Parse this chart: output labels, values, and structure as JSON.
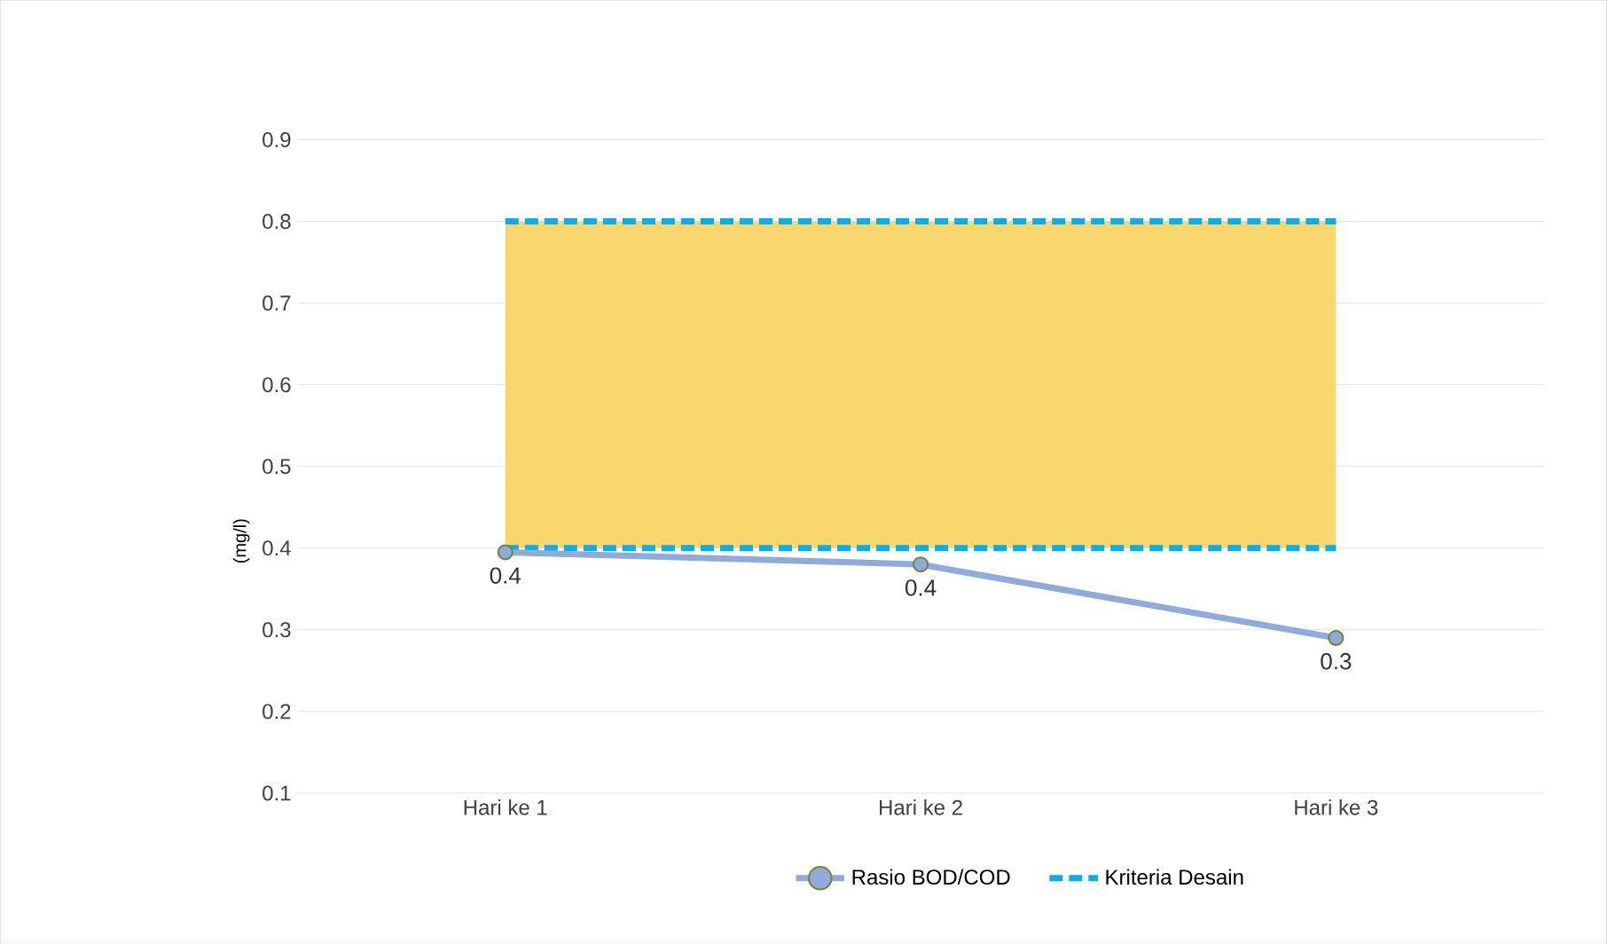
{
  "chart_data": {
    "type": "line",
    "ylabel": "(mg/l)",
    "categories": [
      "Hari ke 1",
      "Hari ke 2",
      "Hari ke 3"
    ],
    "series": [
      {
        "name": "Rasio BOD/COD",
        "color": "#8faadc",
        "values": [
          0.395,
          0.38,
          0.29
        ],
        "value_labels": [
          "0.4",
          "0.4",
          "0.3"
        ],
        "marker": "circle",
        "line_style": "solid"
      },
      {
        "name": "Kriteria Desain",
        "color": "#00b0f0",
        "values": [
          0.8,
          0.8,
          0.8
        ],
        "lower": [
          0.4,
          0.4,
          0.4
        ],
        "upper": [
          0.8,
          0.8,
          0.8
        ],
        "line_style": "dashed",
        "marker": "none"
      },
      {
        "color": "#00b0f0",
        "values": [
          0.4,
          0.4,
          0.4
        ],
        "line_style": "dashed",
        "marker": "none"
      }
    ],
    "ylim": [
      0.1,
      0.9
    ],
    "yticks": [
      0.1,
      0.2,
      0.3,
      0.4,
      0.5,
      0.6,
      0.7,
      0.8,
      0.9
    ],
    "grid": "y",
    "legend": "bottom"
  }
}
